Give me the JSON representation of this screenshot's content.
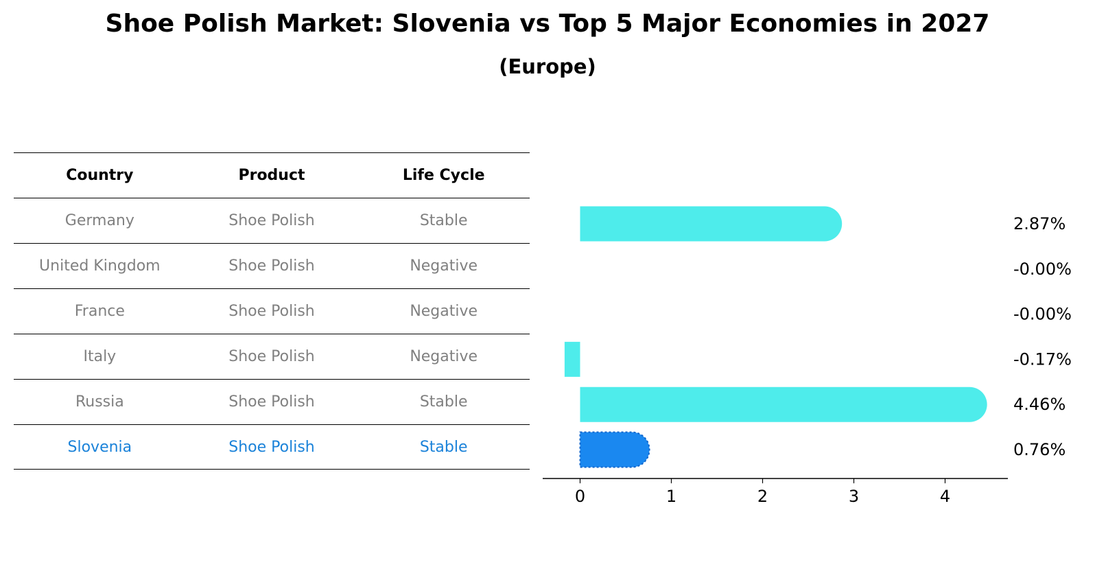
{
  "header": {
    "title": "Shoe Polish Market: Slovenia vs Top 5 Major Economies in 2027",
    "subtitle": "(Europe)"
  },
  "table": {
    "columns": [
      "Country",
      "Product",
      "Life Cycle"
    ],
    "rows": [
      [
        "Germany",
        "Shoe Polish",
        "Stable"
      ],
      [
        "United Kingdom",
        "Shoe Polish",
        "Negative"
      ],
      [
        "France",
        "Shoe Polish",
        "Negative"
      ],
      [
        "Italy",
        "Shoe Polish",
        "Negative"
      ],
      [
        "Russia",
        "Shoe Polish",
        "Stable"
      ],
      [
        "Slovenia",
        "Shoe Polish",
        "Stable"
      ]
    ],
    "highlight_country": "Slovenia"
  },
  "chart_data": {
    "type": "bar",
    "orientation": "horizontal",
    "categories": [
      "Germany",
      "United Kingdom",
      "France",
      "Italy",
      "Russia",
      "Slovenia"
    ],
    "values": [
      2.87,
      -0.0,
      -0.0,
      -0.17,
      4.46,
      0.76
    ],
    "value_labels": [
      "2.87%",
      "-0.00%",
      "-0.00%",
      "-0.17%",
      "4.46%",
      "0.76%"
    ],
    "xlim": [
      -0.4,
      4.7
    ],
    "xticks": [
      0,
      1,
      2,
      3,
      4
    ],
    "colors": {
      "default": "#4eeceb",
      "highlight": "#1a88f0"
    },
    "highlight_index": 5
  }
}
